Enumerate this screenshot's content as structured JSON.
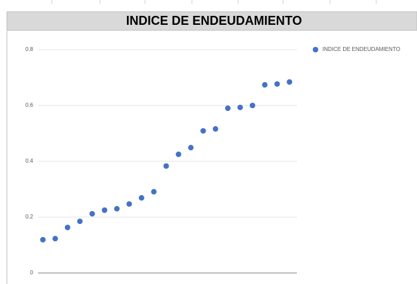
{
  "chart_data": {
    "type": "scatter",
    "title": "INDICE DE ENDEUDAMIENTO",
    "series": [
      {
        "name": "INDICE DE ENDEUDAMIENTO",
        "color": "#4472c4",
        "x": [
          1,
          2,
          3,
          4,
          5,
          6,
          7,
          8,
          9,
          10,
          11,
          12,
          13,
          14,
          15,
          16,
          17,
          18,
          19,
          20,
          21
        ],
        "values": [
          0.119,
          0.123,
          0.163,
          0.185,
          0.212,
          0.225,
          0.23,
          0.247,
          0.269,
          0.291,
          0.383,
          0.425,
          0.449,
          0.509,
          0.516,
          0.59,
          0.593,
          0.6,
          0.674,
          0.677,
          0.684
        ]
      }
    ],
    "xlim": [
      0.6,
      21.6
    ],
    "ylim": [
      0,
      0.8
    ],
    "yticks": [
      0,
      0.2,
      0.4,
      0.6,
      0.8
    ],
    "grid": true,
    "legend": "right"
  }
}
